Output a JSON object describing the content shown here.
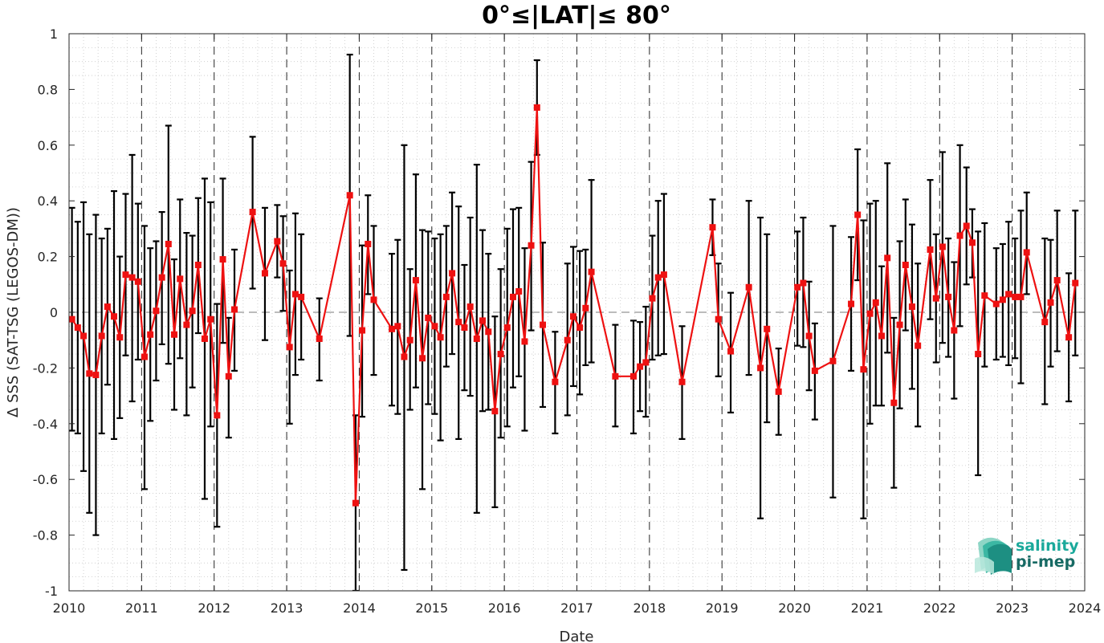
{
  "chart_data": {
    "type": "scatter",
    "title": "0°≤|LAT|≤ 80°",
    "xlabel": "Date",
    "ylabel": "Δ SSS (SAT-TSG (LEGOS-DM))",
    "xlim": [
      2010,
      2024
    ],
    "ylim": [
      -1,
      1
    ],
    "x_ticks": [
      2010,
      2011,
      2012,
      2013,
      2014,
      2015,
      2016,
      2017,
      2018,
      2019,
      2020,
      2021,
      2022,
      2023,
      2024
    ],
    "y_ticks": [
      -1,
      -0.8,
      -0.6,
      -0.4,
      -0.2,
      0,
      0.2,
      0.4,
      0.6,
      0.8,
      1
    ],
    "y_tick_labels": [
      "-1",
      "-0.8",
      "-0.6",
      "-0.4",
      "-0.2",
      "0",
      "0.2",
      "0.4",
      "0.6",
      "0.8",
      "1"
    ],
    "grid": "dotted minor grid, dashed vertical line at each year",
    "zero_line": "dashed gray horizontal at 0",
    "series": [
      {
        "color": "#ee1111",
        "marker": "square",
        "error_bar_color": "#000000",
        "points": [
          {
            "x": 2010.04,
            "y": -0.025,
            "lo": -0.425,
            "hi": 0.375
          },
          {
            "x": 2010.12,
            "y": -0.055,
            "lo": -0.435,
            "hi": 0.325
          },
          {
            "x": 2010.2,
            "y": -0.085,
            "lo": -0.57,
            "hi": 0.395
          },
          {
            "x": 2010.28,
            "y": -0.22,
            "lo": -0.72,
            "hi": 0.28
          },
          {
            "x": 2010.37,
            "y": -0.225,
            "lo": -0.8,
            "hi": 0.35
          },
          {
            "x": 2010.45,
            "y": -0.085,
            "lo": -0.435,
            "hi": 0.265
          },
          {
            "x": 2010.53,
            "y": 0.02,
            "lo": -0.26,
            "hi": 0.3
          },
          {
            "x": 2010.62,
            "y": -0.015,
            "lo": -0.455,
            "hi": 0.435
          },
          {
            "x": 2010.7,
            "y": -0.09,
            "lo": -0.38,
            "hi": 0.2
          },
          {
            "x": 2010.78,
            "y": 0.135,
            "lo": -0.155,
            "hi": 0.425
          },
          {
            "x": 2010.87,
            "y": 0.125,
            "lo": -0.32,
            "hi": 0.565
          },
          {
            "x": 2010.95,
            "y": 0.11,
            "lo": -0.17,
            "hi": 0.39
          },
          {
            "x": 2011.04,
            "y": -0.16,
            "lo": -0.635,
            "hi": 0.31
          },
          {
            "x": 2011.12,
            "y": -0.08,
            "lo": -0.39,
            "hi": 0.23
          },
          {
            "x": 2011.2,
            "y": 0.005,
            "lo": -0.245,
            "hi": 0.255
          },
          {
            "x": 2011.28,
            "y": 0.125,
            "lo": -0.115,
            "hi": 0.36
          },
          {
            "x": 2011.37,
            "y": 0.245,
            "lo": -0.185,
            "hi": 0.67
          },
          {
            "x": 2011.45,
            "y": -0.08,
            "lo": -0.35,
            "hi": 0.19
          },
          {
            "x": 2011.53,
            "y": 0.12,
            "lo": -0.165,
            "hi": 0.405
          },
          {
            "x": 2011.62,
            "y": -0.045,
            "lo": -0.37,
            "hi": 0.285
          },
          {
            "x": 2011.7,
            "y": 0.005,
            "lo": -0.27,
            "hi": 0.275
          },
          {
            "x": 2011.78,
            "y": 0.17,
            "lo": -0.075,
            "hi": 0.41
          },
          {
            "x": 2011.87,
            "y": -0.095,
            "lo": -0.67,
            "hi": 0.48
          },
          {
            "x": 2011.95,
            "y": -0.025,
            "lo": -0.41,
            "hi": 0.395
          },
          {
            "x": 2012.04,
            "y": -0.37,
            "lo": -0.77,
            "hi": 0.03
          },
          {
            "x": 2012.12,
            "y": 0.19,
            "lo": -0.11,
            "hi": 0.48
          },
          {
            "x": 2012.2,
            "y": -0.23,
            "lo": -0.45,
            "hi": -0.02
          },
          {
            "x": 2012.28,
            "y": 0.01,
            "lo": -0.21,
            "hi": 0.225
          },
          {
            "x": 2012.53,
            "y": 0.36,
            "lo": 0.085,
            "hi": 0.63
          },
          {
            "x": 2012.7,
            "y": 0.14,
            "lo": -0.1,
            "hi": 0.375
          },
          {
            "x": 2012.87,
            "y": 0.255,
            "lo": 0.125,
            "hi": 0.385
          },
          {
            "x": 2012.95,
            "y": 0.175,
            "lo": 0.005,
            "hi": 0.345
          },
          {
            "x": 2013.04,
            "y": -0.125,
            "lo": -0.4,
            "hi": 0.15
          },
          {
            "x": 2013.12,
            "y": 0.065,
            "lo": -0.225,
            "hi": 0.355
          },
          {
            "x": 2013.2,
            "y": 0.055,
            "lo": -0.17,
            "hi": 0.28
          },
          {
            "x": 2013.45,
            "y": -0.095,
            "lo": -0.245,
            "hi": 0.05
          },
          {
            "x": 2013.87,
            "y": 0.42,
            "lo": -0.085,
            "hi": 0.925
          },
          {
            "x": 2013.95,
            "y": -0.685,
            "lo": -1.0,
            "hi": -0.37
          },
          {
            "x": 2014.04,
            "y": -0.065,
            "lo": -0.375,
            "hi": 0.24
          },
          {
            "x": 2014.12,
            "y": 0.245,
            "lo": 0.065,
            "hi": 0.42
          },
          {
            "x": 2014.2,
            "y": 0.045,
            "lo": -0.225,
            "hi": 0.31
          },
          {
            "x": 2014.45,
            "y": -0.06,
            "lo": -0.335,
            "hi": 0.21
          },
          {
            "x": 2014.53,
            "y": -0.05,
            "lo": -0.365,
            "hi": 0.26
          },
          {
            "x": 2014.62,
            "y": -0.16,
            "lo": -0.925,
            "hi": 0.6
          },
          {
            "x": 2014.7,
            "y": -0.1,
            "lo": -0.35,
            "hi": 0.155
          },
          {
            "x": 2014.78,
            "y": 0.115,
            "lo": -0.27,
            "hi": 0.495
          },
          {
            "x": 2014.87,
            "y": -0.165,
            "lo": -0.635,
            "hi": 0.295
          },
          {
            "x": 2014.95,
            "y": -0.02,
            "lo": -0.33,
            "hi": 0.29
          },
          {
            "x": 2015.04,
            "y": -0.05,
            "lo": -0.365,
            "hi": 0.265
          },
          {
            "x": 2015.12,
            "y": -0.09,
            "lo": -0.46,
            "hi": 0.28
          },
          {
            "x": 2015.2,
            "y": 0.055,
            "lo": -0.195,
            "hi": 0.31
          },
          {
            "x": 2015.28,
            "y": 0.14,
            "lo": -0.15,
            "hi": 0.43
          },
          {
            "x": 2015.37,
            "y": -0.035,
            "lo": -0.455,
            "hi": 0.38
          },
          {
            "x": 2015.45,
            "y": -0.055,
            "lo": -0.28,
            "hi": 0.17
          },
          {
            "x": 2015.53,
            "y": 0.02,
            "lo": -0.3,
            "hi": 0.34
          },
          {
            "x": 2015.62,
            "y": -0.095,
            "lo": -0.72,
            "hi": 0.53
          },
          {
            "x": 2015.7,
            "y": -0.03,
            "lo": -0.355,
            "hi": 0.295
          },
          {
            "x": 2015.78,
            "y": -0.07,
            "lo": -0.35,
            "hi": 0.21
          },
          {
            "x": 2015.87,
            "y": -0.355,
            "lo": -0.7,
            "hi": -0.015
          },
          {
            "x": 2015.95,
            "y": -0.15,
            "lo": -0.45,
            "hi": 0.155
          },
          {
            "x": 2016.04,
            "y": -0.055,
            "lo": -0.41,
            "hi": 0.3
          },
          {
            "x": 2016.12,
            "y": 0.055,
            "lo": -0.27,
            "hi": 0.37
          },
          {
            "x": 2016.2,
            "y": 0.075,
            "lo": -0.23,
            "hi": 0.375
          },
          {
            "x": 2016.28,
            "y": -0.105,
            "lo": -0.425,
            "hi": 0.23
          },
          {
            "x": 2016.37,
            "y": 0.24,
            "lo": -0.065,
            "hi": 0.54
          },
          {
            "x": 2016.45,
            "y": 0.735,
            "lo": 0.565,
            "hi": 0.905
          },
          {
            "x": 2016.53,
            "y": -0.045,
            "lo": -0.34,
            "hi": 0.25
          },
          {
            "x": 2016.7,
            "y": -0.25,
            "lo": -0.435,
            "hi": -0.07
          },
          {
            "x": 2016.87,
            "y": -0.1,
            "lo": -0.37,
            "hi": 0.175
          },
          {
            "x": 2016.95,
            "y": -0.015,
            "lo": -0.265,
            "hi": 0.235
          },
          {
            "x": 2017.04,
            "y": -0.055,
            "lo": -0.295,
            "hi": 0.22
          },
          {
            "x": 2017.12,
            "y": 0.015,
            "lo": -0.19,
            "hi": 0.225
          },
          {
            "x": 2017.2,
            "y": 0.145,
            "lo": -0.18,
            "hi": 0.475
          },
          {
            "x": 2017.53,
            "y": -0.23,
            "lo": -0.41,
            "hi": -0.045
          },
          {
            "x": 2017.78,
            "y": -0.23,
            "lo": -0.435,
            "hi": -0.03
          },
          {
            "x": 2017.87,
            "y": -0.195,
            "lo": -0.355,
            "hi": -0.035
          },
          {
            "x": 2017.95,
            "y": -0.18,
            "lo": -0.375,
            "hi": 0.02
          },
          {
            "x": 2018.04,
            "y": 0.05,
            "lo": -0.17,
            "hi": 0.275
          },
          {
            "x": 2018.12,
            "y": 0.125,
            "lo": -0.155,
            "hi": 0.4
          },
          {
            "x": 2018.2,
            "y": 0.135,
            "lo": -0.15,
            "hi": 0.425
          },
          {
            "x": 2018.45,
            "y": -0.25,
            "lo": -0.455,
            "hi": -0.05
          },
          {
            "x": 2018.87,
            "y": 0.305,
            "lo": 0.205,
            "hi": 0.405
          },
          {
            "x": 2018.95,
            "y": -0.025,
            "lo": -0.23,
            "hi": 0.175
          },
          {
            "x": 2019.12,
            "y": -0.14,
            "lo": -0.36,
            "hi": 0.07
          },
          {
            "x": 2019.37,
            "y": 0.09,
            "lo": -0.225,
            "hi": 0.4
          },
          {
            "x": 2019.53,
            "y": -0.2,
            "lo": -0.74,
            "hi": 0.34
          },
          {
            "x": 2019.62,
            "y": -0.06,
            "lo": -0.395,
            "hi": 0.28
          },
          {
            "x": 2019.78,
            "y": -0.285,
            "lo": -0.44,
            "hi": -0.13
          },
          {
            "x": 2020.04,
            "y": 0.09,
            "lo": -0.12,
            "hi": 0.29
          },
          {
            "x": 2020.12,
            "y": 0.105,
            "lo": -0.125,
            "hi": 0.34
          },
          {
            "x": 2020.2,
            "y": -0.085,
            "lo": -0.28,
            "hi": 0.11
          },
          {
            "x": 2020.28,
            "y": -0.21,
            "lo": -0.385,
            "hi": -0.04
          },
          {
            "x": 2020.53,
            "y": -0.175,
            "lo": -0.665,
            "hi": 0.31
          },
          {
            "x": 2020.78,
            "y": 0.03,
            "lo": -0.21,
            "hi": 0.27
          },
          {
            "x": 2020.87,
            "y": 0.35,
            "lo": 0.115,
            "hi": 0.585
          },
          {
            "x": 2020.95,
            "y": -0.205,
            "lo": -0.74,
            "hi": 0.33
          },
          {
            "x": 2021.04,
            "y": -0.005,
            "lo": -0.4,
            "hi": 0.39
          },
          {
            "x": 2021.12,
            "y": 0.035,
            "lo": -0.335,
            "hi": 0.4
          },
          {
            "x": 2021.2,
            "y": -0.085,
            "lo": -0.335,
            "hi": 0.165
          },
          {
            "x": 2021.28,
            "y": 0.195,
            "lo": -0.145,
            "hi": 0.535
          },
          {
            "x": 2021.37,
            "y": -0.325,
            "lo": -0.63,
            "hi": -0.02
          },
          {
            "x": 2021.45,
            "y": -0.045,
            "lo": -0.345,
            "hi": 0.255
          },
          {
            "x": 2021.53,
            "y": 0.17,
            "lo": -0.065,
            "hi": 0.405
          },
          {
            "x": 2021.62,
            "y": 0.02,
            "lo": -0.275,
            "hi": 0.315
          },
          {
            "x": 2021.7,
            "y": -0.12,
            "lo": -0.41,
            "hi": 0.175
          },
          {
            "x": 2021.87,
            "y": 0.225,
            "lo": -0.025,
            "hi": 0.475
          },
          {
            "x": 2021.95,
            "y": 0.05,
            "lo": -0.18,
            "hi": 0.28
          },
          {
            "x": 2022.04,
            "y": 0.235,
            "lo": -0.11,
            "hi": 0.575
          },
          {
            "x": 2022.12,
            "y": 0.055,
            "lo": -0.16,
            "hi": 0.265
          },
          {
            "x": 2022.2,
            "y": -0.065,
            "lo": -0.31,
            "hi": 0.18
          },
          {
            "x": 2022.28,
            "y": 0.275,
            "lo": -0.05,
            "hi": 0.6
          },
          {
            "x": 2022.37,
            "y": 0.31,
            "lo": 0.1,
            "hi": 0.52
          },
          {
            "x": 2022.45,
            "y": 0.25,
            "lo": 0.125,
            "hi": 0.37
          },
          {
            "x": 2022.53,
            "y": -0.15,
            "lo": -0.585,
            "hi": 0.29
          },
          {
            "x": 2022.62,
            "y": 0.06,
            "lo": -0.195,
            "hi": 0.32
          },
          {
            "x": 2022.78,
            "y": 0.03,
            "lo": -0.17,
            "hi": 0.23
          },
          {
            "x": 2022.87,
            "y": 0.045,
            "lo": -0.16,
            "hi": 0.245
          },
          {
            "x": 2022.95,
            "y": 0.065,
            "lo": -0.19,
            "hi": 0.325
          },
          {
            "x": 2023.04,
            "y": 0.055,
            "lo": -0.165,
            "hi": 0.265
          },
          {
            "x": 2023.12,
            "y": 0.055,
            "lo": -0.255,
            "hi": 0.365
          },
          {
            "x": 2023.2,
            "y": 0.215,
            "lo": 0.065,
            "hi": 0.43
          },
          {
            "x": 2023.45,
            "y": -0.035,
            "lo": -0.33,
            "hi": 0.265
          },
          {
            "x": 2023.53,
            "y": 0.035,
            "lo": -0.195,
            "hi": 0.26
          },
          {
            "x": 2023.62,
            "y": 0.115,
            "lo": -0.14,
            "hi": 0.365
          },
          {
            "x": 2023.78,
            "y": -0.09,
            "lo": -0.32,
            "hi": 0.14
          },
          {
            "x": 2023.87,
            "y": 0.105,
            "lo": -0.155,
            "hi": 0.365
          }
        ]
      }
    ]
  },
  "logo": {
    "line1": "salinity",
    "line2": "pi-mep",
    "color_line1": "#1aa99b",
    "color_line2": "#176a64"
  }
}
